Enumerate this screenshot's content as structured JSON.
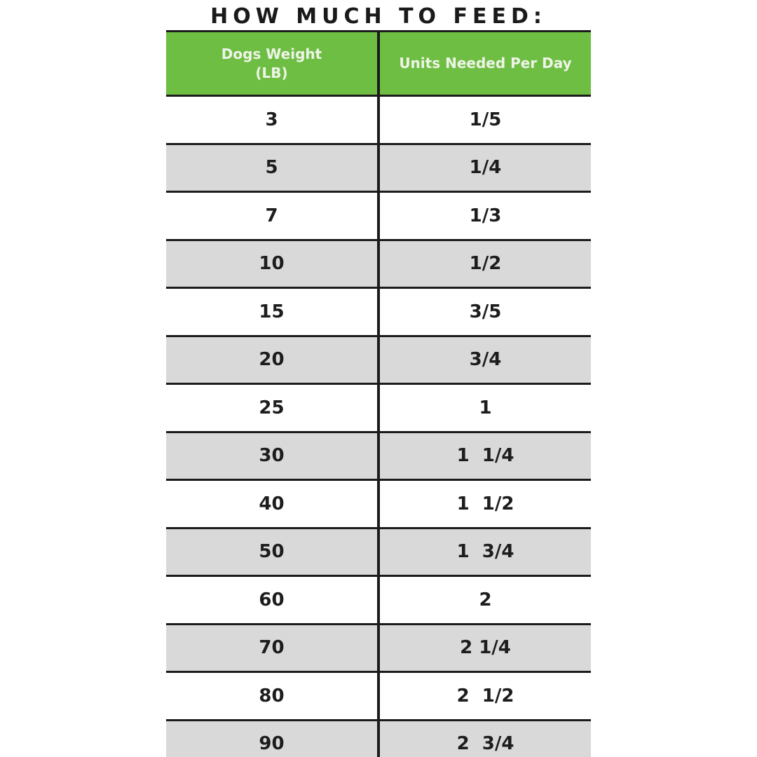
{
  "page": {
    "title": "HOW MUCH TO FEED:"
  },
  "table": {
    "header": {
      "col1_line1": "Dogs Weight",
      "col1_line2": "(LB)",
      "col2": "Units Needed Per Day"
    },
    "rows": [
      {
        "weight": "3",
        "units": "1/5"
      },
      {
        "weight": "5",
        "units": "1/4"
      },
      {
        "weight": "7",
        "units": "1/3"
      },
      {
        "weight": "10",
        "units": "1/2"
      },
      {
        "weight": "15",
        "units": "3/5"
      },
      {
        "weight": "20",
        "units": "3/4"
      },
      {
        "weight": "25",
        "units": "1"
      },
      {
        "weight": "30",
        "units": "1  1/4"
      },
      {
        "weight": "40",
        "units": "1  1/2"
      },
      {
        "weight": "50",
        "units": "1  3/4"
      },
      {
        "weight": "60",
        "units": "2"
      },
      {
        "weight": "70",
        "units": "2 1/4"
      },
      {
        "weight": "80",
        "units": "2  1/2"
      },
      {
        "weight": "90",
        "units": "2  3/4"
      }
    ]
  },
  "colors": {
    "header_green": "#6fbe44",
    "alt_row_gray": "#d9d9d9",
    "line_black": "#1b1b1b",
    "header_text": "#eef4e7",
    "body_text": "#1d1d1d",
    "title_text": "#1a1a1a"
  },
  "chart_data": {
    "type": "table",
    "title": "HOW MUCH TO FEED:",
    "columns": [
      "Dogs Weight (LB)",
      "Units Needed Per Day"
    ],
    "rows": [
      [
        3,
        "1/5"
      ],
      [
        5,
        "1/4"
      ],
      [
        7,
        "1/3"
      ],
      [
        10,
        "1/2"
      ],
      [
        15,
        "3/5"
      ],
      [
        20,
        "3/4"
      ],
      [
        25,
        "1"
      ],
      [
        30,
        "1 1/4"
      ],
      [
        40,
        "1 1/2"
      ],
      [
        50,
        "1 3/4"
      ],
      [
        60,
        "2"
      ],
      [
        70,
        "2 1/4"
      ],
      [
        80,
        "2 1/2"
      ],
      [
        90,
        "2 3/4"
      ]
    ],
    "layout": {
      "header_fill": "#6fbe44",
      "alternating_row_fill": [
        "#ffffff",
        "#d9d9d9"
      ],
      "gridlines": "horizontal black rules + single center column divider",
      "last_row_clipped": true
    }
  }
}
